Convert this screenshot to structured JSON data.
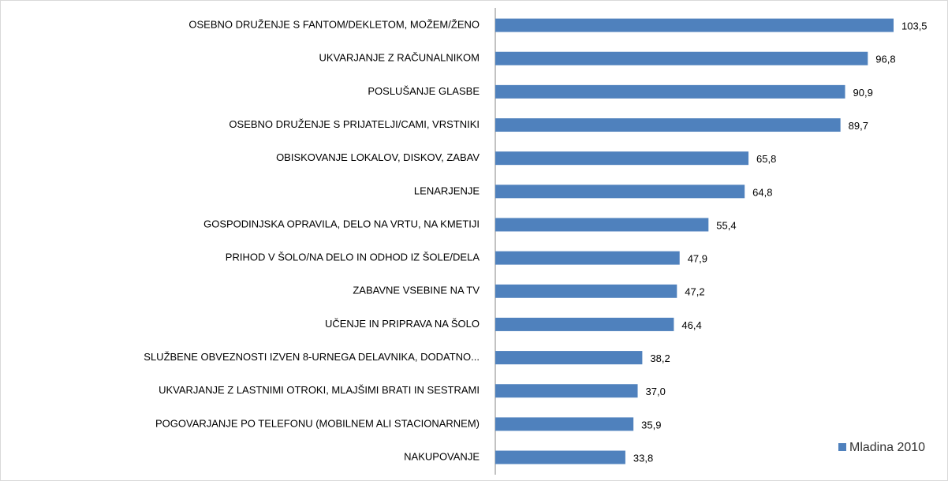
{
  "chart_data": {
    "type": "bar",
    "orientation": "horizontal",
    "categories": [
      "OSEBNO DRUŽENJE S FANTOM/DEKLETOM, MOŽEM/ŽENO",
      "UKVARJANJE Z RAČUNALNIKOM",
      "POSLUŠANJE GLASBE",
      "OSEBNO DRUŽENJE S PRIJATELJI/CAMI, VRSTNIKI",
      "OBISKOVANJE LOKALOV, DISKOV, ZABAV",
      "LENARJENJE",
      "GOSPODINJSKA OPRAVILA, DELO NA VRTU, NA KMETIJI",
      "PRIHOD V ŠOLO/NA DELO IN ODHOD IZ ŠOLE/DELA",
      "ZABAVNE VSEBINE NA TV",
      "UČENJE IN PRIPRAVA NA ŠOLO",
      "SLUŽBENE OBVEZNOSTI IZVEN 8-URNEGA DELAVNIKA, DODATNO...",
      "UKVARJANJE Z LASTNIMI OTROKI, MLAJŠIMI BRATI IN SESTRAMI",
      "POGOVARJANJE PO TELEFONU (MOBILNEM ALI STACIONARNEM)",
      "NAKUPOVANJE"
    ],
    "series": [
      {
        "name": "Mladina 2010",
        "color": "#4f81bd",
        "values": [
          103.5,
          96.8,
          90.9,
          89.7,
          65.8,
          64.8,
          55.4,
          47.9,
          47.2,
          46.4,
          38.2,
          37.0,
          35.9,
          33.8
        ],
        "value_labels": [
          "103,5",
          "96,8",
          "90,9",
          "89,7",
          "65,8",
          "64,8",
          "55,4",
          "47,9",
          "47,2",
          "46,4",
          "38,2",
          "37,0",
          "35,9",
          "33,8"
        ]
      }
    ],
    "legend": "bottom-right"
  }
}
